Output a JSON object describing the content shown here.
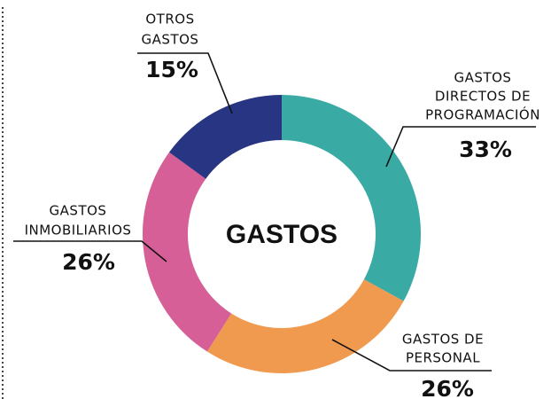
{
  "chart_data": {
    "type": "donut",
    "title": "GASTOS",
    "categories": [
      [
        "GASTOS",
        "DIRECTOS DE",
        "PROGRAMACIÓN"
      ],
      [
        "GASTOS DE",
        "PERSONAL"
      ],
      [
        "GASTOS",
        "INMOBILIARIOS"
      ],
      [
        "OTROS",
        "GASTOS"
      ]
    ],
    "values": [
      33,
      26,
      26,
      15
    ],
    "value_labels": [
      "33%",
      "26%",
      "26%",
      "15%"
    ],
    "colors": [
      "#3aaba4",
      "#f09a50",
      "#d55f96",
      "#283582"
    ]
  }
}
